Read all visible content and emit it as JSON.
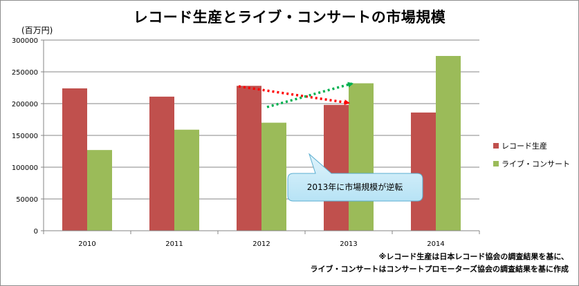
{
  "chart_data": {
    "type": "bar",
    "title": "レコード生産とライブ・コンサートの市場規模",
    "unit_label": "(百万円)",
    "categories": [
      "2010",
      "2011",
      "2012",
      "2013",
      "2014"
    ],
    "series": [
      {
        "name": "レコード生産",
        "color": "#c0504d",
        "values": [
          224000,
          211000,
          228000,
          198000,
          186000
        ]
      },
      {
        "name": "ライブ・コンサート",
        "color": "#9bbb59",
        "values": [
          127000,
          159000,
          170000,
          232000,
          275000
        ]
      }
    ],
    "ylim": [
      0,
      300000
    ],
    "yticks": [
      0,
      50000,
      100000,
      150000,
      200000,
      250000,
      300000
    ],
    "grid": true,
    "legend_position": "right",
    "annotation": "2013年に市場規模が逆転",
    "notes": [
      "※レコード生産は日本レコード協会の調査結果を基に、",
      "ライブ・コンサートはコンサートプロモーターズ協会の調査結果を基に作成"
    ]
  }
}
